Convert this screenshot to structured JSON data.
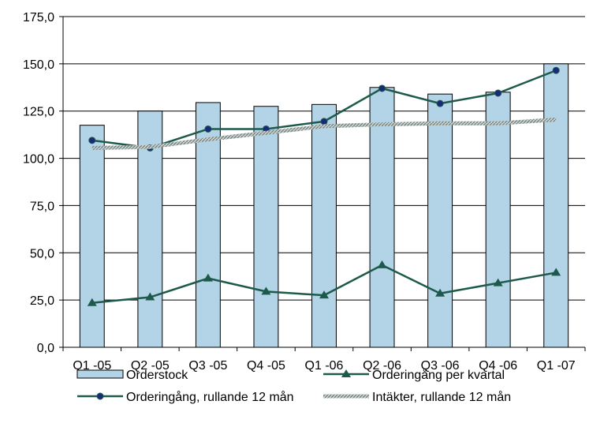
{
  "chart_data": {
    "type": "bar",
    "categories": [
      "Q1 -05",
      "Q2 -05",
      "Q3 -05",
      "Q4 -05",
      "Q1 -06",
      "Q2 -06",
      "Q3 -06",
      "Q4 -06",
      "Q1 -07"
    ],
    "ylim": [
      0,
      175
    ],
    "yticks": [
      "0,0",
      "25,0",
      "50,0",
      "75,0",
      "100,0",
      "125,0",
      "150,0",
      "175,0"
    ],
    "grid": true,
    "legend_position": "bottom",
    "series": [
      {
        "name": "Orderstock",
        "kind": "bar",
        "color": "#b3d4e6",
        "values": [
          117.5,
          125,
          129.5,
          127.5,
          128.5,
          137.5,
          134,
          135,
          150
        ]
      },
      {
        "name": "Orderingång per kvartal",
        "kind": "line",
        "marker": "triangle",
        "color": "#1e5a4c",
        "values": [
          23.5,
          26.5,
          36.5,
          29.5,
          27.5,
          43.5,
          28.5,
          34,
          39.5
        ]
      },
      {
        "name": "Orderingång, rullande 12 mån",
        "kind": "line",
        "marker": "circle",
        "color": "#1e5a4c",
        "marker_fill": "#1a2a7a",
        "values": [
          109.5,
          105.5,
          115.5,
          115.5,
          119.5,
          137,
          129,
          134.5,
          146.5
        ]
      },
      {
        "name": "Intäkter, rullande 12 mån",
        "kind": "line",
        "marker": "none",
        "style": "hatched",
        "color": "#9aa8a5",
        "values": [
          105.5,
          106,
          110,
          113.5,
          117,
          118,
          118.5,
          118.5,
          120.5
        ]
      }
    ]
  }
}
